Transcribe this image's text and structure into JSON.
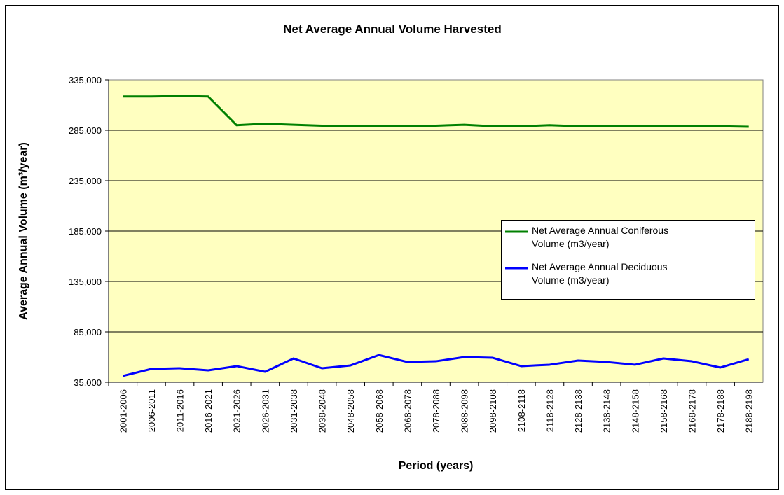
{
  "chart_data": {
    "type": "line",
    "title": "Net Average Annual Volume Harvested",
    "x_label": "Period (years)",
    "y_label": "Average Annual Volume (m³/year)",
    "categories": [
      "2001-2006",
      "2006-2011",
      "2011-2016",
      "2016-2021",
      "2021-2026",
      "2026-2031",
      "2031-2038",
      "2038-2048",
      "2048-2058",
      "2058-2068",
      "2068-2078",
      "2078-2088",
      "2088-2098",
      "2098-2108",
      "2108-2118",
      "2118-2128",
      "2128-2138",
      "2138-2148",
      "2148-2158",
      "2158-2168",
      "2168-2178",
      "2178-2188",
      "2188-2198"
    ],
    "series": [
      {
        "name": "Net Average Annual Coniferous Volume (m3/year)",
        "color": "#008000",
        "values": [
          318500,
          318500,
          319000,
          318500,
          290000,
          291500,
          290500,
          289500,
          289500,
          289000,
          289000,
          289500,
          290500,
          289000,
          289000,
          290000,
          289000,
          289500,
          289500,
          289000,
          289000,
          289000,
          288500
        ]
      },
      {
        "name": "Net Average Annual Deciduous Volume (m3/year)",
        "color": "#0000ff",
        "values": [
          41300,
          48200,
          48900,
          46800,
          51000,
          45400,
          58600,
          48900,
          51700,
          62000,
          55100,
          55800,
          60000,
          59300,
          51000,
          52400,
          56500,
          55100,
          52400,
          58600,
          55800,
          49600,
          57900
        ]
      }
    ],
    "ylim": [
      35000,
      335000
    ],
    "yticks": [
      {
        "value": 35000,
        "label": "35,000"
      },
      {
        "value": 85000,
        "label": "85,000"
      },
      {
        "value": 135000,
        "label": "135,000"
      },
      {
        "value": 185000,
        "label": "185,000"
      },
      {
        "value": 235000,
        "label": "235,000"
      },
      {
        "value": 285000,
        "label": "285,000"
      },
      {
        "value": 335000,
        "label": "335,000"
      }
    ],
    "grid": true,
    "plot_background": "#ffffc0",
    "legend": "right"
  }
}
